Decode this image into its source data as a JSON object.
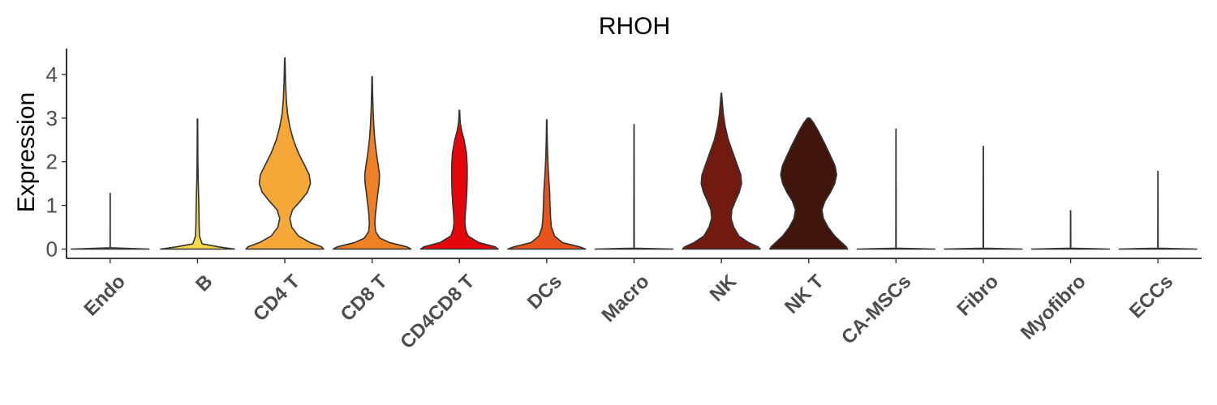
{
  "chart_data": {
    "type": "violin",
    "title": "RHOH",
    "xlabel": "",
    "ylabel": "Expression",
    "ylim": [
      -0.2,
      4.5
    ],
    "yticks": [
      0,
      1,
      2,
      3,
      4
    ],
    "grid": false,
    "legend": "none",
    "categories": [
      "Endo",
      "B",
      "CD4 T",
      "CD8 T",
      "CD4CD8 T",
      "DCs",
      "Macro",
      "NK",
      "NK T",
      "CA-MSCs",
      "Fibro",
      "Myofibro",
      "ECCs"
    ],
    "colors": [
      "#FFF0A0",
      "#F6D84A",
      "#F5A838",
      "#F08024",
      "#E5060C",
      "#E8541B",
      "#C41A17",
      "#701A10",
      "#3F150C",
      "#F0F0F0",
      "#F0F0F0",
      "#F0F0F0",
      "#F0F0F0"
    ],
    "series": [
      {
        "category": "Endo",
        "max": 1.28,
        "profile": [
          [
            0,
            1
          ],
          [
            0.03,
            0.003
          ],
          [
            1.28,
            0.002
          ]
        ]
      },
      {
        "category": "B",
        "max": 2.98,
        "profile": [
          [
            0,
            0.95
          ],
          [
            0.05,
            0.55
          ],
          [
            0.12,
            0.12
          ],
          [
            0.3,
            0.05
          ],
          [
            0.6,
            0.04
          ],
          [
            1.0,
            0.035
          ],
          [
            1.5,
            0.02
          ],
          [
            2.0,
            0.01
          ],
          [
            2.98,
            0.005
          ]
        ]
      },
      {
        "category": "CD4 T",
        "max": 4.38,
        "profile": [
          [
            0,
            1
          ],
          [
            0.05,
            0.95
          ],
          [
            0.15,
            0.65
          ],
          [
            0.3,
            0.35
          ],
          [
            0.5,
            0.18
          ],
          [
            0.7,
            0.13
          ],
          [
            0.9,
            0.2
          ],
          [
            1.1,
            0.4
          ],
          [
            1.3,
            0.58
          ],
          [
            1.5,
            0.66
          ],
          [
            1.7,
            0.63
          ],
          [
            1.9,
            0.52
          ],
          [
            2.2,
            0.35
          ],
          [
            2.5,
            0.22
          ],
          [
            2.8,
            0.13
          ],
          [
            3.1,
            0.07
          ],
          [
            3.4,
            0.04
          ],
          [
            3.8,
            0.02
          ],
          [
            4.38,
            0.005
          ]
        ]
      },
      {
        "category": "CD8 T",
        "max": 3.95,
        "profile": [
          [
            0,
            1
          ],
          [
            0.05,
            0.9
          ],
          [
            0.15,
            0.45
          ],
          [
            0.25,
            0.2
          ],
          [
            0.4,
            0.09
          ],
          [
            0.6,
            0.07
          ],
          [
            0.8,
            0.085
          ],
          [
            1.0,
            0.11
          ],
          [
            1.3,
            0.15
          ],
          [
            1.5,
            0.18
          ],
          [
            1.7,
            0.19
          ],
          [
            1.9,
            0.16
          ],
          [
            2.2,
            0.11
          ],
          [
            2.5,
            0.07
          ],
          [
            2.8,
            0.045
          ],
          [
            3.2,
            0.025
          ],
          [
            3.6,
            0.012
          ],
          [
            3.95,
            0.005
          ]
        ]
      },
      {
        "category": "CD4CD8 T",
        "max": 3.18,
        "profile": [
          [
            0,
            1
          ],
          [
            0.05,
            0.92
          ],
          [
            0.15,
            0.5
          ],
          [
            0.3,
            0.22
          ],
          [
            0.45,
            0.16
          ],
          [
            0.6,
            0.14
          ],
          [
            0.8,
            0.15
          ],
          [
            1.0,
            0.17
          ],
          [
            1.3,
            0.19
          ],
          [
            1.6,
            0.2
          ],
          [
            1.9,
            0.2
          ],
          [
            2.2,
            0.18
          ],
          [
            2.5,
            0.12
          ],
          [
            2.7,
            0.06
          ],
          [
            2.9,
            0.02
          ],
          [
            3.18,
            0.005
          ]
        ]
      },
      {
        "category": "DCs",
        "max": 2.96,
        "profile": [
          [
            0,
            1
          ],
          [
            0.05,
            0.85
          ],
          [
            0.15,
            0.4
          ],
          [
            0.3,
            0.2
          ],
          [
            0.5,
            0.12
          ],
          [
            0.7,
            0.1
          ],
          [
            0.9,
            0.09
          ],
          [
            1.1,
            0.08
          ],
          [
            1.3,
            0.075
          ],
          [
            1.5,
            0.06
          ],
          [
            1.8,
            0.04
          ],
          [
            2.1,
            0.025
          ],
          [
            2.5,
            0.012
          ],
          [
            2.96,
            0.005
          ]
        ]
      },
      {
        "category": "Macro",
        "max": 2.85,
        "profile": [
          [
            0,
            1
          ],
          [
            0.02,
            0.005
          ],
          [
            2.85,
            0.002
          ]
        ]
      },
      {
        "category": "NK",
        "max": 3.57,
        "profile": [
          [
            0,
            1
          ],
          [
            0.05,
            0.95
          ],
          [
            0.15,
            0.7
          ],
          [
            0.3,
            0.45
          ],
          [
            0.5,
            0.32
          ],
          [
            0.7,
            0.25
          ],
          [
            0.9,
            0.27
          ],
          [
            1.1,
            0.36
          ],
          [
            1.3,
            0.46
          ],
          [
            1.5,
            0.52
          ],
          [
            1.7,
            0.5
          ],
          [
            1.9,
            0.42
          ],
          [
            2.2,
            0.3
          ],
          [
            2.5,
            0.18
          ],
          [
            2.8,
            0.1
          ],
          [
            3.1,
            0.05
          ],
          [
            3.57,
            0.005
          ]
        ]
      },
      {
        "category": "NK T",
        "max": 3.0,
        "profile": [
          [
            0,
            1
          ],
          [
            0.05,
            0.97
          ],
          [
            0.15,
            0.85
          ],
          [
            0.3,
            0.67
          ],
          [
            0.5,
            0.5
          ],
          [
            0.7,
            0.38
          ],
          [
            0.9,
            0.34
          ],
          [
            1.1,
            0.42
          ],
          [
            1.3,
            0.56
          ],
          [
            1.5,
            0.67
          ],
          [
            1.7,
            0.72
          ],
          [
            1.9,
            0.68
          ],
          [
            2.1,
            0.58
          ],
          [
            2.4,
            0.42
          ],
          [
            2.7,
            0.25
          ],
          [
            2.9,
            0.12
          ],
          [
            3.0,
            0.03
          ]
        ]
      },
      {
        "category": "CA-MSCs",
        "max": 2.75,
        "profile": [
          [
            0,
            1
          ],
          [
            0.02,
            0.005
          ],
          [
            2.75,
            0.002
          ]
        ]
      },
      {
        "category": "Fibro",
        "max": 2.35,
        "profile": [
          [
            0,
            1
          ],
          [
            0.02,
            0.005
          ],
          [
            2.35,
            0.002
          ]
        ]
      },
      {
        "category": "Myofibro",
        "max": 0.88,
        "profile": [
          [
            0,
            1
          ],
          [
            0.02,
            0.005
          ],
          [
            0.88,
            0.002
          ]
        ]
      },
      {
        "category": "ECCs",
        "max": 1.78,
        "profile": [
          [
            0,
            1
          ],
          [
            0.02,
            0.005
          ],
          [
            1.78,
            0.002
          ]
        ]
      }
    ]
  }
}
